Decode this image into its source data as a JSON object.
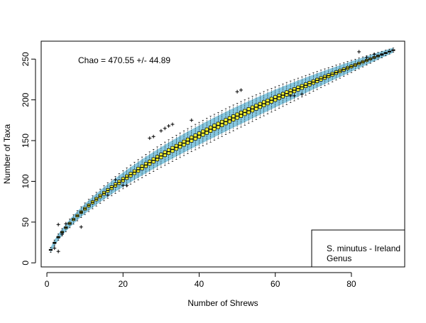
{
  "chart_data": {
    "type": "box",
    "title": "",
    "xlabel": "Number of Shrews",
    "ylabel": "Number of Taxa",
    "xlim": [
      -1.5,
      94
    ],
    "ylim": [
      -5,
      272
    ],
    "xticks": [
      0,
      20,
      40,
      60,
      80
    ],
    "yticks": [
      0,
      50,
      100,
      150,
      200,
      250
    ],
    "n_boxes": 91,
    "final_value": 261,
    "annotation": "Chao = 470.55 +/- 44.89",
    "legend": {
      "placement": "bottom-right",
      "lines": [
        "S. minutus - Ireland",
        "Genus"
      ]
    },
    "colors": {
      "band": "#87c8e0",
      "box": "#ffff33",
      "outline": "#000000"
    },
    "outliers": [
      [
        2,
        18
      ],
      [
        3,
        47
      ],
      [
        3,
        14
      ],
      [
        4,
        35
      ],
      [
        5,
        48
      ],
      [
        9,
        62
      ],
      [
        9,
        44
      ],
      [
        16,
        83
      ],
      [
        18,
        102
      ],
      [
        20,
        95
      ],
      [
        21,
        95
      ],
      [
        27,
        153
      ],
      [
        28,
        155
      ],
      [
        30,
        162
      ],
      [
        31,
        165
      ],
      [
        32,
        168
      ],
      [
        33,
        170
      ],
      [
        38,
        175
      ],
      [
        50,
        210
      ],
      [
        51,
        212
      ],
      [
        64,
        205
      ],
      [
        65,
        205
      ],
      [
        67,
        207
      ],
      [
        82,
        259
      ],
      [
        84,
        252
      ],
      [
        86,
        256
      ]
    ]
  }
}
